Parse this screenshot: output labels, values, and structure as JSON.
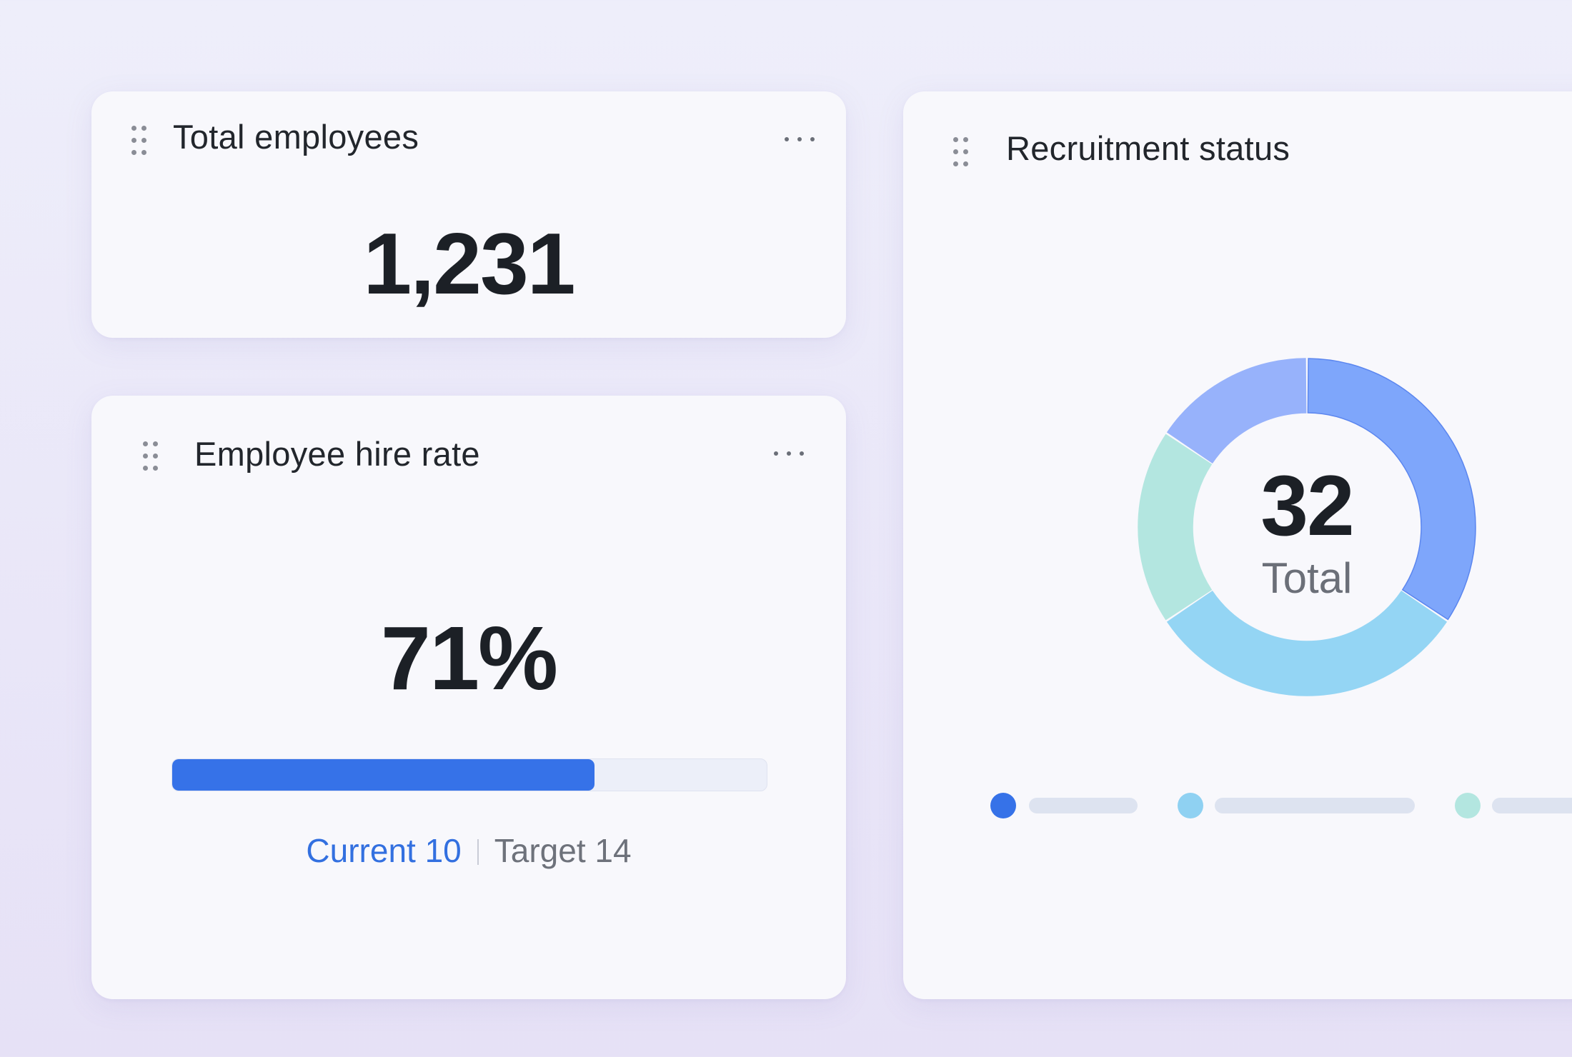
{
  "cards": {
    "total_employees": {
      "title": "Total employees",
      "value": "1,231"
    },
    "hire_rate": {
      "title": "Employee hire rate",
      "percent_label": "71%",
      "progress_fraction": 0.71,
      "current_label": "Current 10",
      "target_label": "Target 14"
    },
    "recruitment_status": {
      "title": "Recruitment status",
      "total_value": "32",
      "total_label": "Total",
      "segments": [
        {
          "value": 11,
          "color": "#7ea6fb",
          "stroke": "#5b86ef"
        },
        {
          "value": 10,
          "color": "#94d5f4",
          "stroke": "#94d5f4"
        },
        {
          "value": 6,
          "color": "#b3e6e0",
          "stroke": "#b3e6e0"
        },
        {
          "value": 5,
          "color": "#97b2fb",
          "stroke": "#97b2fb"
        }
      ],
      "legend": [
        {
          "color": "#3672e8"
        },
        {
          "color": "#8fd1f2"
        },
        {
          "color": "#b3e6e0"
        }
      ]
    }
  },
  "icons": {
    "drag": "drag-handle-icon",
    "more": "more-options-icon"
  }
}
